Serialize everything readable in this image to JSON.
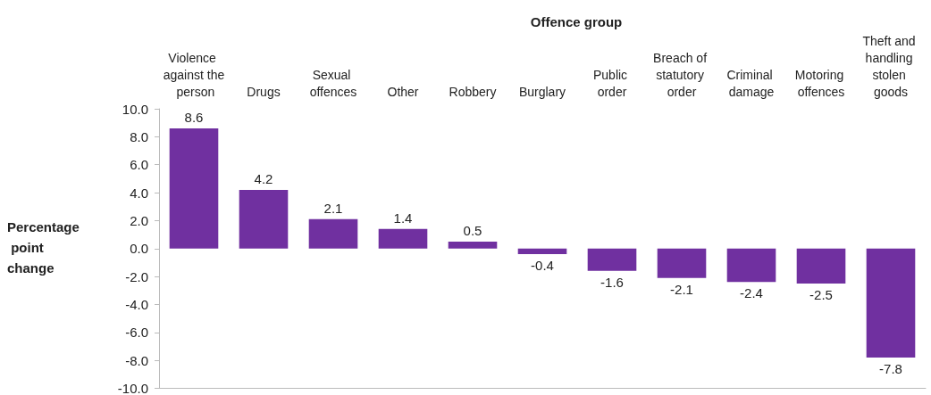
{
  "chart_data": {
    "type": "bar",
    "xlabel": "Offence group",
    "ylabel": "Percentage point change",
    "categories": [
      "Violence against the person",
      "Drugs",
      "Sexual offences",
      "Other",
      "Robbery",
      "Burglary",
      "Public order",
      "Breach of statutory order",
      "Criminal damage",
      "Motoring offences",
      "Theft and handling stolen goods"
    ],
    "values": [
      8.6,
      4.2,
      2.1,
      1.4,
      0.5,
      -0.4,
      -1.6,
      -2.1,
      -2.4,
      -2.5,
      -7.8
    ],
    "color": "#7030a0",
    "ylim": [
      -10,
      10
    ],
    "yticks": [
      {
        "value": -10,
        "label": "-10.0"
      },
      {
        "value": -8,
        "label": "-8.0"
      },
      {
        "value": -6,
        "label": "-6.0"
      },
      {
        "value": -4,
        "label": "-4.0"
      },
      {
        "value": -2,
        "label": "-2.0"
      },
      {
        "value": 0,
        "label": "0.0"
      },
      {
        "value": 2,
        "label": "2.0"
      },
      {
        "value": 4,
        "label": "4.0"
      },
      {
        "value": 6,
        "label": "6.0"
      },
      {
        "value": 8,
        "label": "8.0"
      },
      {
        "value": 10,
        "label": "10.0"
      }
    ],
    "data_labels": true
  }
}
